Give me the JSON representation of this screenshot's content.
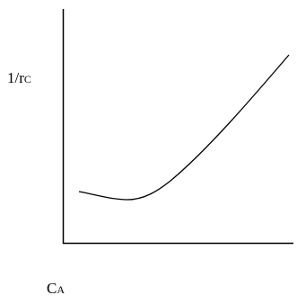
{
  "y_axis_label": {
    "text": "1/r",
    "subscript": "C"
  },
  "x_axis_label": {
    "text": "C",
    "subscript": "A"
  }
}
